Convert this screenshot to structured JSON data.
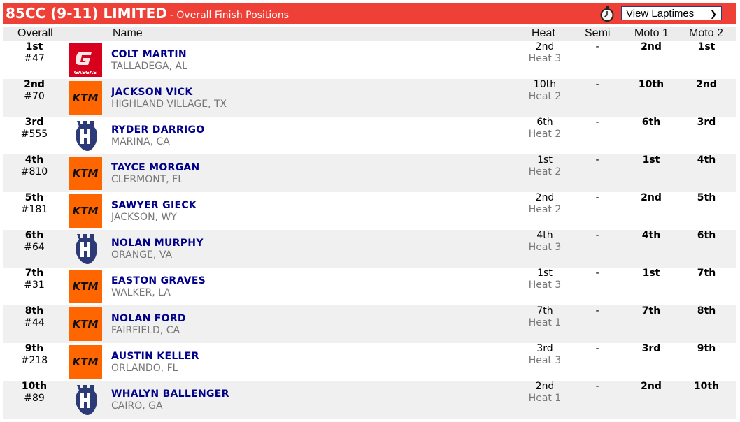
{
  "header": {
    "title": "85CC (9-11) LIMITED",
    "subtitle": "- Overall Finish Positions",
    "laptimes_select": "View Laptimes",
    "accent": "#ee4036"
  },
  "columns": {
    "overall": "Overall",
    "name": "Name",
    "heat": "Heat",
    "semi": "Semi",
    "moto1": "Moto 1",
    "moto2": "Moto 2"
  },
  "rows": [
    {
      "pos": "1st",
      "num": "#47",
      "brand": "gasgas",
      "name": "COLT MARTIN",
      "loc": "TALLADEGA, AL",
      "heat": "2nd",
      "heat_no": "Heat 3",
      "semi": "-",
      "moto1": "2nd",
      "moto2": "1st"
    },
    {
      "pos": "2nd",
      "num": "#70",
      "brand": "ktm",
      "name": "JACKSON VICK",
      "loc": "HIGHLAND VILLAGE, TX",
      "heat": "10th",
      "heat_no": "Heat 2",
      "semi": "-",
      "moto1": "10th",
      "moto2": "2nd"
    },
    {
      "pos": "3rd",
      "num": "#555",
      "brand": "husqvarna",
      "name": "RYDER DARRIGO",
      "loc": "MARINA, CA",
      "heat": "6th",
      "heat_no": "Heat 2",
      "semi": "-",
      "moto1": "6th",
      "moto2": "3rd"
    },
    {
      "pos": "4th",
      "num": "#810",
      "brand": "ktm",
      "name": "TAYCE MORGAN",
      "loc": "CLERMONT, FL",
      "heat": "1st",
      "heat_no": "Heat 2",
      "semi": "-",
      "moto1": "1st",
      "moto2": "4th"
    },
    {
      "pos": "5th",
      "num": "#181",
      "brand": "ktm",
      "name": "SAWYER GIECK",
      "loc": "JACKSON, WY",
      "heat": "2nd",
      "heat_no": "Heat 2",
      "semi": "-",
      "moto1": "2nd",
      "moto2": "5th"
    },
    {
      "pos": "6th",
      "num": "#64",
      "brand": "husqvarna",
      "name": "NOLAN MURPHY",
      "loc": "ORANGE, VA",
      "heat": "4th",
      "heat_no": "Heat 3",
      "semi": "-",
      "moto1": "4th",
      "moto2": "6th"
    },
    {
      "pos": "7th",
      "num": "#31",
      "brand": "ktm",
      "name": "EASTON GRAVES",
      "loc": "WALKER, LA",
      "heat": "1st",
      "heat_no": "Heat 3",
      "semi": "-",
      "moto1": "1st",
      "moto2": "7th"
    },
    {
      "pos": "8th",
      "num": "#44",
      "brand": "ktm",
      "name": "NOLAN FORD",
      "loc": "FAIRFIELD, CA",
      "heat": "7th",
      "heat_no": "Heat 1",
      "semi": "-",
      "moto1": "7th",
      "moto2": "8th"
    },
    {
      "pos": "9th",
      "num": "#218",
      "brand": "ktm",
      "name": "AUSTIN KELLER",
      "loc": "ORLANDO, FL",
      "heat": "3rd",
      "heat_no": "Heat 3",
      "semi": "-",
      "moto1": "3rd",
      "moto2": "9th"
    },
    {
      "pos": "10th",
      "num": "#89",
      "brand": "husqvarna",
      "name": "WHALYN BALLENGER",
      "loc": "CAIRO, GA",
      "heat": "2nd",
      "heat_no": "Heat 1",
      "semi": "-",
      "moto1": "2nd",
      "moto2": "10th"
    }
  ]
}
